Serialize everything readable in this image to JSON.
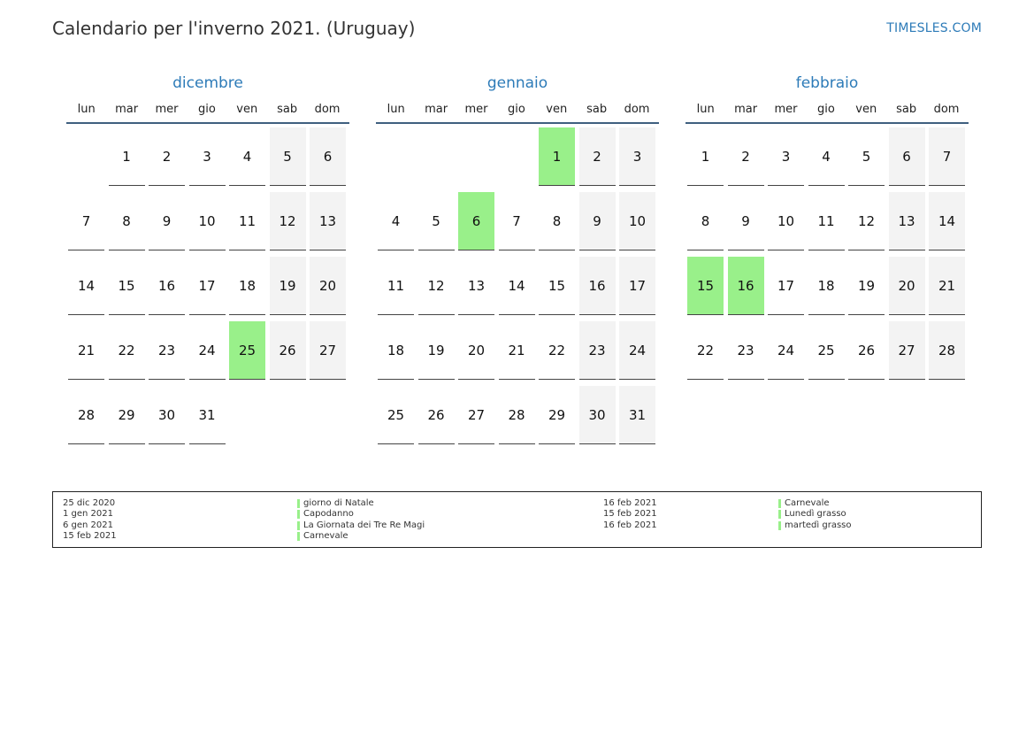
{
  "title": "Calendario per l'inverno 2021. (Uruguay)",
  "site": "TIMESLES.COM",
  "weekdays": [
    "lun",
    "mar",
    "mer",
    "gio",
    "ven",
    "sab",
    "dom"
  ],
  "months": [
    {
      "name": "dicembre",
      "start_offset": 1,
      "days": 31,
      "holidays": [
        25
      ]
    },
    {
      "name": "gennaio",
      "start_offset": 4,
      "days": 31,
      "holidays": [
        1,
        6
      ]
    },
    {
      "name": "febbraio",
      "start_offset": 0,
      "days": 28,
      "holidays": [
        15,
        16
      ]
    }
  ],
  "legend": {
    "left": [
      {
        "date": "25 dic 2020",
        "name": "giorno di Natale"
      },
      {
        "date": "1 gen 2021",
        "name": "Capodanno"
      },
      {
        "date": "6 gen 2021",
        "name": "La Giornata dei Tre Re Magi"
      },
      {
        "date": "15 feb 2021",
        "name": "Carnevale"
      }
    ],
    "right": [
      {
        "date": "16 feb 2021",
        "name": "Carnevale"
      },
      {
        "date": "15 feb 2021",
        "name": "Lunedì grasso"
      },
      {
        "date": "16 feb 2021",
        "name": "martedì grasso"
      }
    ]
  },
  "colors": {
    "accent": "#2d7bb8",
    "holiday": "#99f08a",
    "weekend": "#f3f3f3"
  }
}
